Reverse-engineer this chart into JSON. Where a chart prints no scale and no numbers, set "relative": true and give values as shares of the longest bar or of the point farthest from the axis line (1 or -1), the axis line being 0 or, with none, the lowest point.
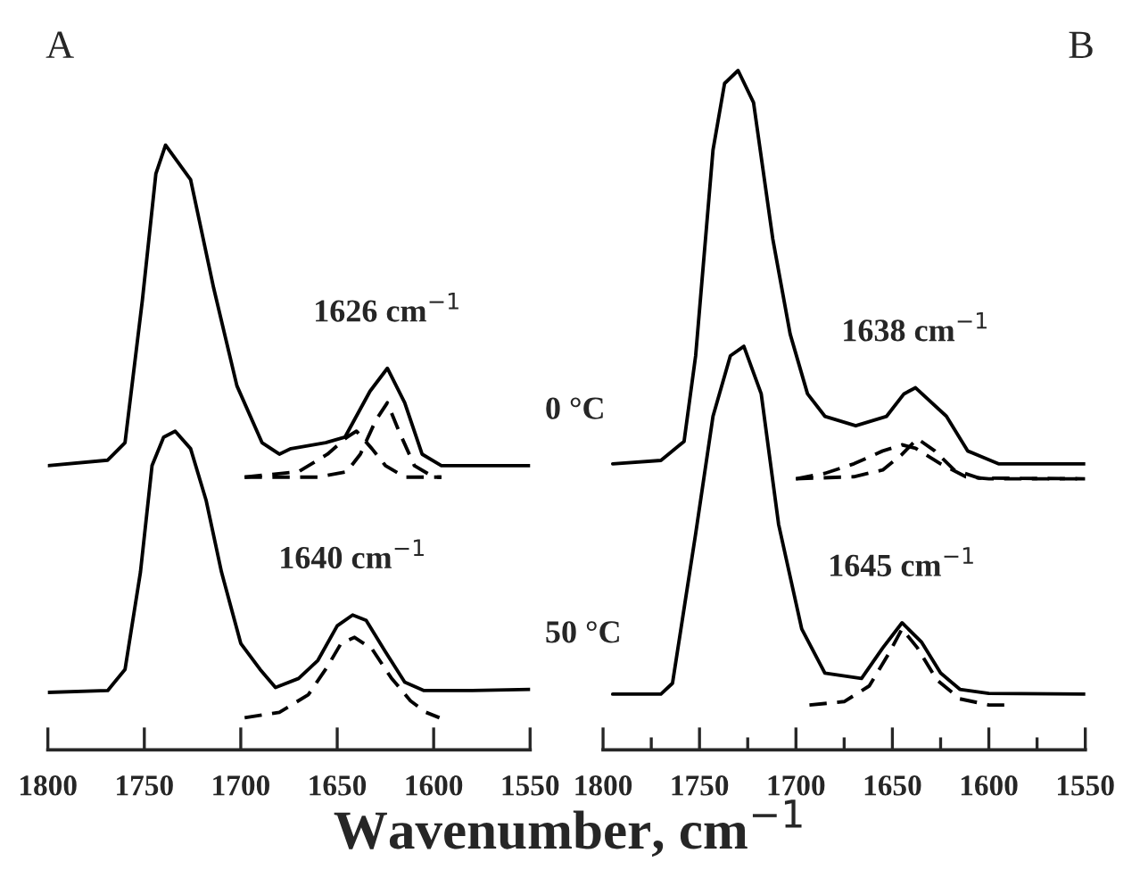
{
  "chart_data": [
    {
      "type": "line",
      "title": "A",
      "relative": true,
      "xlabel": "Wavenumber, cm$^{−1}$",
      "xlim": [
        1800,
        1550
      ],
      "xticks": [
        1800,
        1750,
        1700,
        1650,
        1600,
        1550
      ],
      "tick_labels": "x",
      "grid": false,
      "series": [
        {
          "color": "#000000",
          "line_style": "solid",
          "x": [
            1800,
            1769,
            1760,
            1751,
            1744,
            1739,
            1726,
            1714,
            1702,
            1689,
            1680,
            1674,
            1656,
            1646,
            1633,
            1624,
            1615,
            1606,
            1596,
            1575,
            1550
          ],
          "values": [
            0.47,
            0.479,
            0.508,
            0.744,
            0.953,
            1.0,
            0.943,
            0.763,
            0.602,
            0.508,
            0.489,
            0.498,
            0.508,
            0.517,
            0.593,
            0.631,
            0.574,
            0.489,
            0.47,
            0.47,
            0.47
          ]
        },
        {
          "color": "#000000",
          "line_style": "dashed",
          "x": [
            1698,
            1660,
            1645,
            1638,
            1630,
            1624,
            1618,
            1610,
            1600,
            1596
          ],
          "values": [
            0.451,
            0.451,
            0.46,
            0.489,
            0.545,
            0.574,
            0.527,
            0.47,
            0.451,
            0.451
          ]
        },
        {
          "color": "#000000",
          "line_style": "dashed",
          "x": [
            1698,
            1670,
            1655,
            1645,
            1640,
            1632,
            1625,
            1615,
            1605,
            1596
          ],
          "values": [
            0.451,
            0.46,
            0.489,
            0.517,
            0.527,
            0.498,
            0.47,
            0.451,
            0.451,
            0.451
          ]
        },
        {
          "color": "#000000",
          "line_style": "solid",
          "x": [
            1800,
            1769,
            1760,
            1752,
            1746,
            1740,
            1734,
            1726,
            1718,
            1710,
            1700,
            1690,
            1682,
            1670,
            1660,
            1650,
            1642,
            1635,
            1625,
            1615,
            1605,
            1580,
            1550
          ],
          "values": [
            0.095,
            0.098,
            0.133,
            0.294,
            0.47,
            0.517,
            0.527,
            0.498,
            0.413,
            0.294,
            0.176,
            0.133,
            0.103,
            0.118,
            0.148,
            0.205,
            0.223,
            0.214,
            0.162,
            0.112,
            0.098,
            0.098,
            0.1
          ]
        },
        {
          "color": "#000000",
          "line_style": "dashed",
          "x": [
            1698,
            1680,
            1665,
            1655,
            1648,
            1641,
            1632,
            1622,
            1612,
            1604,
            1597
          ],
          "values": [
            0.053,
            0.062,
            0.091,
            0.138,
            0.176,
            0.186,
            0.167,
            0.119,
            0.081,
            0.062,
            0.053
          ]
        }
      ],
      "annotations": [
        "1626 cm$^{−1}$",
        "1640 cm$^{−1}$",
        "0 °C",
        "50 °C"
      ]
    },
    {
      "type": "line",
      "title": "B",
      "relative": true,
      "xlim": [
        1800,
        1550
      ],
      "xticks": [
        1800,
        {
          "value": 1775,
          "label": null
        },
        1750,
        {
          "value": 1725,
          "label": null
        },
        1700,
        {
          "value": 1675,
          "label": null
        },
        1650,
        {
          "value": 1625,
          "label": null
        },
        1600,
        {
          "value": 1575,
          "label": null
        },
        1550
      ],
      "tick_labels": "x",
      "grid": false,
      "series": [
        {
          "color": "#000000",
          "line_style": "solid",
          "x": [
            1795,
            1770,
            1758,
            1752,
            1743,
            1737,
            1730,
            1722,
            1712,
            1703,
            1694,
            1685,
            1669,
            1653,
            1644,
            1638,
            1622,
            1611,
            1595,
            1550
          ],
          "values": [
            0.421,
            0.426,
            0.454,
            0.58,
            0.883,
            0.981,
            1.0,
            0.953,
            0.752,
            0.612,
            0.524,
            0.491,
            0.477,
            0.491,
            0.524,
            0.533,
            0.491,
            0.44,
            0.421,
            0.421
          ]
        },
        {
          "color": "#000000",
          "line_style": "dashed",
          "x": [
            1700,
            1670,
            1655,
            1645,
            1637,
            1628,
            1618,
            1605,
            1550
          ],
          "values": [
            0.399,
            0.402,
            0.412,
            0.435,
            0.458,
            0.44,
            0.412,
            0.4,
            0.399
          ]
        },
        {
          "color": "#000000",
          "line_style": "dashed",
          "x": [
            1700,
            1685,
            1670,
            1655,
            1645,
            1638,
            1625,
            1612,
            1600,
            1550
          ],
          "values": [
            0.399,
            0.407,
            0.421,
            0.44,
            0.449,
            0.444,
            0.421,
            0.402,
            0.399,
            0.399
          ]
        },
        {
          "color": "#000000",
          "line_style": "solid",
          "x": [
            1795,
            1770,
            1764,
            1752,
            1743,
            1734,
            1727,
            1718,
            1709,
            1697,
            1685,
            1666,
            1655,
            1645,
            1635,
            1625,
            1615,
            1600,
            1550
          ],
          "values": [
            0.082,
            0.082,
            0.098,
            0.318,
            0.491,
            0.58,
            0.594,
            0.524,
            0.332,
            0.178,
            0.113,
            0.105,
            0.15,
            0.187,
            0.159,
            0.113,
            0.089,
            0.083,
            0.082
          ]
        },
        {
          "color": "#000000",
          "line_style": "dashed",
          "x": [
            1693,
            1675,
            1662,
            1652,
            1645,
            1637,
            1627,
            1615,
            1600,
            1592
          ],
          "values": [
            0.066,
            0.071,
            0.094,
            0.141,
            0.178,
            0.15,
            0.103,
            0.075,
            0.066,
            0.066
          ]
        }
      ],
      "annotations": [
        "1638 cm$^{−1}$",
        "1645 cm$^{−1}$"
      ]
    }
  ]
}
